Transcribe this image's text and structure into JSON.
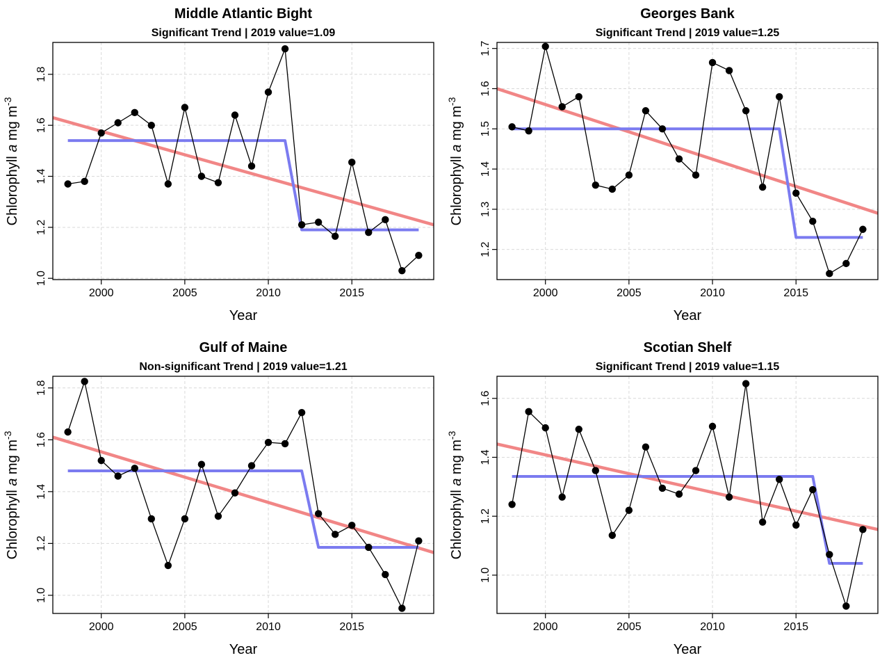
{
  "colors": {
    "trend": "#F08080",
    "regime": "#7B7BF0",
    "series": "#000000",
    "grid": "#D9D9D9"
  },
  "chart_data": [
    {
      "type": "line",
      "title": "Middle Atlantic Bight",
      "subtitle": "Significant Trend | 2019 value=1.09",
      "xlabel": "Year",
      "ylabel_main": "Chlorophyll ",
      "ylabel_italic": "a",
      "ylabel_units": " mg m",
      "ylabel_exp": "-3",
      "xlim": [
        1997.1,
        2019.9
      ],
      "ylim": [
        0.995,
        1.925
      ],
      "xticks": [
        2000,
        2005,
        2010,
        2015
      ],
      "yticks": [
        1.0,
        1.2,
        1.4,
        1.6,
        1.8
      ],
      "ytick_labels": [
        "1.0",
        "1.2",
        "1.4",
        "1.6",
        "1.8"
      ],
      "x": [
        1998,
        1999,
        2000,
        2001,
        2002,
        2003,
        2004,
        2005,
        2006,
        2007,
        2008,
        2009,
        2010,
        2011,
        2012,
        2013,
        2014,
        2015,
        2016,
        2017,
        2018,
        2019
      ],
      "values": [
        1.37,
        1.38,
        1.57,
        1.61,
        1.65,
        1.6,
        1.37,
        1.67,
        1.4,
        1.375,
        1.64,
        1.44,
        1.73,
        1.9,
        1.21,
        1.22,
        1.165,
        1.455,
        1.18,
        1.23,
        1.03,
        1.09
      ],
      "trend": {
        "x": [
          1997.1,
          2019.9
        ],
        "y": [
          1.63,
          1.21
        ]
      },
      "regime": {
        "x": [
          1998,
          2011,
          2012,
          2019
        ],
        "y": [
          1.54,
          1.54,
          1.19,
          1.19
        ]
      }
    },
    {
      "type": "line",
      "title": "Georges Bank",
      "subtitle": "Significant Trend | 2019 value=1.25",
      "xlabel": "Year",
      "ylabel_main": "Chlorophyll ",
      "ylabel_italic": "a",
      "ylabel_units": " mg m",
      "ylabel_exp": "-3",
      "xlim": [
        1997.1,
        2019.9
      ],
      "ylim": [
        1.125,
        1.715
      ],
      "xticks": [
        2000,
        2005,
        2010,
        2015
      ],
      "yticks": [
        1.2,
        1.3,
        1.4,
        1.5,
        1.6,
        1.7
      ],
      "ytick_labels": [
        "1.2",
        "1.3",
        "1.4",
        "1.5",
        "1.6",
        "1.7"
      ],
      "x": [
        1998,
        1999,
        2000,
        2001,
        2002,
        2003,
        2004,
        2005,
        2006,
        2007,
        2008,
        2009,
        2010,
        2011,
        2012,
        2013,
        2014,
        2015,
        2016,
        2017,
        2018,
        2019
      ],
      "values": [
        1.505,
        1.495,
        1.705,
        1.555,
        1.58,
        1.36,
        1.35,
        1.385,
        1.545,
        1.5,
        1.425,
        1.385,
        1.665,
        1.645,
        1.545,
        1.355,
        1.58,
        1.34,
        1.27,
        1.14,
        1.165,
        1.25
      ],
      "trend": {
        "x": [
          1997.1,
          2019.9
        ],
        "y": [
          1.6,
          1.29
        ]
      },
      "regime": {
        "x": [
          1998,
          2014,
          2015,
          2019
        ],
        "y": [
          1.5,
          1.5,
          1.23,
          1.23
        ]
      }
    },
    {
      "type": "line",
      "title": "Gulf of Maine",
      "subtitle": "Non-significant Trend | 2019 value=1.21",
      "xlabel": "Year",
      "ylabel_main": "Chlorophyll ",
      "ylabel_italic": "a",
      "ylabel_units": " mg m",
      "ylabel_exp": "-3",
      "xlim": [
        1997.1,
        2019.9
      ],
      "ylim": [
        0.93,
        1.845
      ],
      "xticks": [
        2000,
        2005,
        2010,
        2015
      ],
      "yticks": [
        1.0,
        1.2,
        1.4,
        1.6,
        1.8
      ],
      "ytick_labels": [
        "1.0",
        "1.2",
        "1.4",
        "1.6",
        "1.8"
      ],
      "x": [
        1998,
        1999,
        2000,
        2001,
        2002,
        2003,
        2004,
        2005,
        2006,
        2007,
        2008,
        2009,
        2010,
        2011,
        2012,
        2013,
        2014,
        2015,
        2016,
        2017,
        2018,
        2019
      ],
      "values": [
        1.63,
        1.825,
        1.52,
        1.46,
        1.49,
        1.295,
        1.115,
        1.295,
        1.505,
        1.305,
        1.395,
        1.5,
        1.59,
        1.585,
        1.705,
        1.315,
        1.235,
        1.27,
        1.185,
        1.08,
        0.95,
        1.21
      ],
      "trend": {
        "x": [
          1997.1,
          2019.9
        ],
        "y": [
          1.61,
          1.165
        ]
      },
      "regime": {
        "x": [
          1998,
          2012,
          2013,
          2019
        ],
        "y": [
          1.48,
          1.48,
          1.185,
          1.185
        ]
      }
    },
    {
      "type": "line",
      "title": "Scotian Shelf",
      "subtitle": "Significant Trend | 2019 value=1.15",
      "xlabel": "Year",
      "ylabel_main": "Chlorophyll ",
      "ylabel_italic": "a",
      "ylabel_units": " mg m",
      "ylabel_exp": "-3",
      "xlim": [
        1997.1,
        2019.9
      ],
      "ylim": [
        0.87,
        1.675
      ],
      "xticks": [
        2000,
        2005,
        2010,
        2015
      ],
      "yticks": [
        1.0,
        1.2,
        1.4,
        1.6
      ],
      "ytick_labels": [
        "1.0",
        "1.2",
        "1.4",
        "1.6"
      ],
      "x": [
        1998,
        1999,
        2000,
        2001,
        2002,
        2003,
        2004,
        2005,
        2006,
        2007,
        2008,
        2009,
        2010,
        2011,
        2012,
        2013,
        2014,
        2015,
        2016,
        2017,
        2018,
        2019
      ],
      "values": [
        1.24,
        1.555,
        1.5,
        1.265,
        1.495,
        1.355,
        1.135,
        1.22,
        1.435,
        1.295,
        1.275,
        1.355,
        1.505,
        1.265,
        1.65,
        1.18,
        1.325,
        1.17,
        1.29,
        1.07,
        0.895,
        1.155
      ],
      "trend": {
        "x": [
          1997.1,
          2019.9
        ],
        "y": [
          1.445,
          1.155
        ]
      },
      "regime": {
        "x": [
          1998,
          2016,
          2017,
          2019
        ],
        "y": [
          1.335,
          1.335,
          1.04,
          1.04
        ]
      }
    }
  ]
}
